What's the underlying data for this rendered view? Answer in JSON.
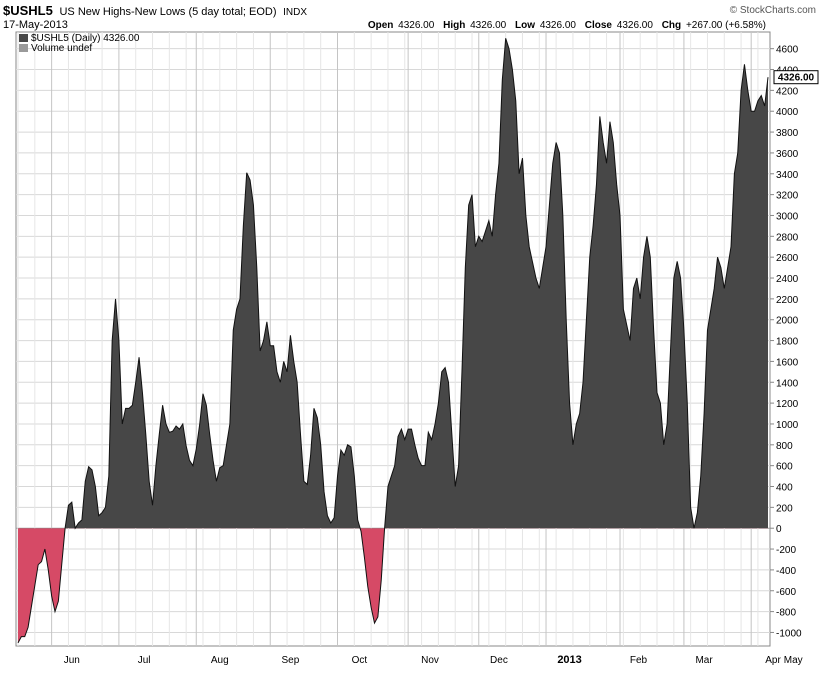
{
  "header": {
    "symbol": "$USHL5",
    "description": "US New Highs-New Lows (5 day total; EOD)",
    "exchange": "INDX",
    "date": "17-May-2013",
    "watermark": "© StockCharts.com",
    "open_label": "Open",
    "open_value": "4326.00",
    "high_label": "High",
    "high_value": "4326.00",
    "low_label": "Low",
    "low_value": "4326.00",
    "close_label": "Close",
    "close_value": "4326.00",
    "chg_label": "Chg",
    "chg_value": "+267.00 (+6.58%)"
  },
  "legend": {
    "series_label": "$USHL5 (Daily) 4326.00",
    "volume_label": "Volume undef"
  },
  "last_value_tag": "4326.00",
  "colors": {
    "positive_fill": "#474747",
    "negative_fill": "#d64a66",
    "grid": "#d8d8d8",
    "zero_line": "#9a9a9a"
  },
  "chart_data": {
    "type": "area",
    "ylim": [
      -1130,
      4760
    ],
    "yticks": [
      -1000,
      -800,
      -600,
      -400,
      -200,
      0,
      200,
      400,
      600,
      800,
      1000,
      1200,
      1400,
      1600,
      1800,
      2000,
      2200,
      2400,
      2600,
      2800,
      3000,
      3200,
      3400,
      3600,
      3800,
      4000,
      4200,
      4400,
      4600
    ],
    "ytick_labels": [
      "-1000",
      "-800",
      "-600",
      "-400",
      "-200",
      "0",
      "200",
      "400",
      "600",
      "800",
      "1000",
      "1200",
      "1400",
      "1600",
      "1800",
      "2000",
      "2200",
      "2400",
      "2600",
      "2800",
      "3000",
      "3200",
      "3400",
      "3600",
      "3800",
      "4000",
      "4200",
      "4400",
      "4600"
    ],
    "months": [
      "Jun",
      "Jul",
      "Aug",
      "Sep",
      "Oct",
      "Nov",
      "Dec",
      "2013",
      "Feb",
      "Mar",
      "Apr",
      "May"
    ],
    "month_bold": [
      false,
      false,
      false,
      false,
      false,
      false,
      false,
      true,
      false,
      false,
      false,
      false
    ],
    "month_start_index": [
      10,
      30,
      53,
      75,
      95,
      116,
      137,
      157,
      179,
      198,
      218,
      239
    ],
    "values": [
      -1100,
      -1040,
      -1040,
      -950,
      -750,
      -550,
      -350,
      -320,
      -200,
      -400,
      -650,
      -800,
      -700,
      -350,
      0,
      220,
      250,
      0,
      50,
      80,
      450,
      590,
      560,
      400,
      120,
      150,
      200,
      500,
      1800,
      2200,
      1800,
      1000,
      1150,
      1150,
      1180,
      1400,
      1640,
      1300,
      900,
      450,
      220,
      600,
      900,
      1180,
      1000,
      920,
      930,
      980,
      950,
      1000,
      790,
      650,
      600,
      760,
      990,
      1290,
      1180,
      900,
      650,
      450,
      580,
      600,
      800,
      1000,
      1900,
      2100,
      2200,
      2900,
      3410,
      3340,
      3100,
      2500,
      1700,
      1800,
      1980,
      1750,
      1750,
      1500,
      1400,
      1600,
      1500,
      1850,
      1600,
      1400,
      900,
      450,
      420,
      700,
      1150,
      1060,
      800,
      350,
      120,
      50,
      100,
      500,
      750,
      700,
      800,
      780,
      500,
      80,
      -30,
      -280,
      -560,
      -760,
      -910,
      -850,
      -500,
      0,
      400,
      500,
      600,
      880,
      950,
      850,
      950,
      950,
      800,
      670,
      600,
      600,
      920,
      850,
      1000,
      1200,
      1500,
      1540,
      1400,
      900,
      400,
      600,
      1500,
      2500,
      3100,
      3200,
      2700,
      2800,
      2750,
      2850,
      2950,
      2800,
      3200,
      3500,
      4300,
      4700,
      4600,
      4400,
      4100,
      3400,
      3550,
      3000,
      2700,
      2550,
      2400,
      2300,
      2500,
      2700,
      3100,
      3500,
      3700,
      3600,
      3000,
      2000,
      1200,
      800,
      1000,
      1100,
      1400,
      2000,
      2600,
      2900,
      3300,
      3950,
      3700,
      3500,
      3900,
      3700,
      3300,
      3000,
      2100,
      1950,
      1800,
      2300,
      2400,
      2200,
      2600,
      2800,
      2600,
      1900,
      1300,
      1200,
      800,
      1000,
      1700,
      2400,
      2560,
      2400,
      1900,
      1200,
      200,
      0,
      150,
      500,
      1100,
      1900,
      2100,
      2300,
      2600,
      2500,
      2300,
      2500,
      2700,
      3400,
      3600,
      4200,
      4450,
      4200,
      4000,
      4000,
      4100,
      4150,
      4050,
      4326
    ]
  }
}
